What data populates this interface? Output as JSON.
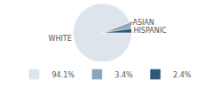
{
  "chart_data": {
    "type": "pie",
    "categories": [
      "WHITE",
      "ASIAN",
      "HISPANIC"
    ],
    "values": [
      94.1,
      3.4,
      2.4
    ],
    "value_labels": [
      "94.1%",
      "3.4%",
      "2.4%"
    ],
    "colors": [
      "#dde4ec",
      "#8ea4bb",
      "#2e5878"
    ],
    "legend": "bottom"
  }
}
